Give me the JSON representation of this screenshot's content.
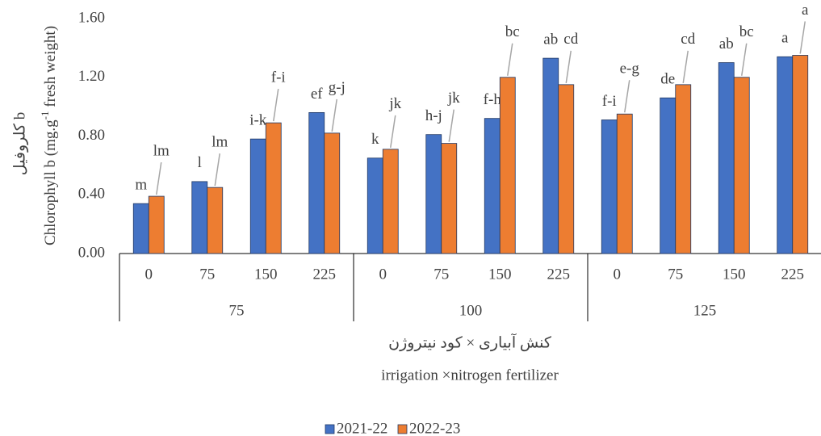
{
  "chart_data": {
    "type": "bar",
    "y_label": [
      "Chlorophyll b (mg.g",
      "-1",
      " fresh weight)"
    ],
    "y_label_fa": "کلروفیل b",
    "x_label_fa": "کنش آبیاری × کود نیتروژن",
    "x_label": "irrigation ×nitrogen fertilizer",
    "categories": [
      "0",
      "75",
      "150",
      "225",
      "0",
      "75",
      "150",
      "225",
      "0",
      "75",
      "150",
      "225"
    ],
    "groups": [
      "75",
      "100",
      "125"
    ],
    "series": [
      {
        "name": "2021-22",
        "color": "#4472c4",
        "values": [
          0.34,
          0.49,
          0.78,
          0.96,
          0.65,
          0.81,
          0.92,
          1.33,
          0.91,
          1.06,
          1.3,
          1.34
        ],
        "letters": [
          "m",
          "l",
          "i-k",
          "ef",
          "k",
          "h-j",
          "f-h",
          "ab",
          "f-i",
          "de",
          "ab",
          "a"
        ]
      },
      {
        "name": "2022-23",
        "color": "#ed7d31",
        "values": [
          0.39,
          0.45,
          0.89,
          0.82,
          0.71,
          0.75,
          1.2,
          1.15,
          0.95,
          1.15,
          1.2,
          1.35
        ],
        "letters": [
          "lm",
          "lm",
          "f-i",
          "g-j",
          "jk",
          "jk",
          "bc",
          "cd",
          "e-g",
          "cd",
          "bc",
          "a"
        ]
      }
    ],
    "ylim": [
      0,
      1.6
    ],
    "yticks": [
      {
        "value": 0,
        "label": "0.00"
      },
      {
        "value": 0.4,
        "label": "0.40"
      },
      {
        "value": 0.8,
        "label": "0.80"
      },
      {
        "value": 1.2,
        "label": "1.20"
      },
      {
        "value": 1.6,
        "label": "1.60"
      }
    ],
    "grid": false
  }
}
